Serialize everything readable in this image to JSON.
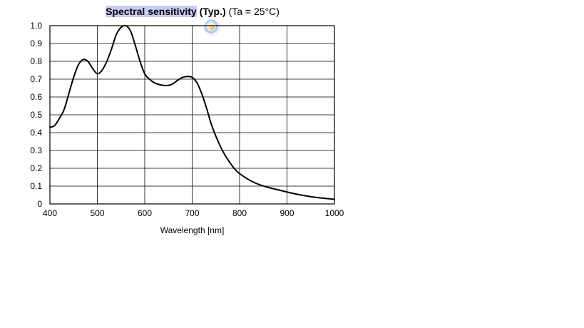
{
  "title": {
    "selected_text": "Spectral sensitivity",
    "bold_text": "(Typ.)",
    "condition_text": "(Ta = 25°C)"
  },
  "chart_data": {
    "type": "line",
    "title": "Spectral sensitivity (Typ.) (Ta = 25°C)",
    "xlabel": "Wavelength [nm]",
    "ylabel": "",
    "xlim": [
      400,
      1000
    ],
    "ylim": [
      0,
      1.0
    ],
    "x_ticks": [
      400,
      500,
      600,
      700,
      800,
      900,
      1000
    ],
    "y_ticks": [
      0,
      0.1,
      0.2,
      0.3,
      0.4,
      0.5,
      0.6,
      0.7,
      0.8,
      0.9,
      1.0
    ],
    "y_tick_labels": [
      "0",
      "0.1",
      "0.2",
      "0.3",
      "0.4",
      "0.5",
      "0.6",
      "0.7",
      "0.8",
      "0.9",
      "1.0"
    ],
    "grid": true,
    "series": [
      {
        "color": "#000000",
        "x": [
          400,
          410,
          420,
          430,
          440,
          450,
          460,
          470,
          480,
          490,
          500,
          510,
          520,
          530,
          540,
          550,
          560,
          570,
          580,
          590,
          600,
          610,
          620,
          630,
          640,
          650,
          660,
          670,
          680,
          690,
          700,
          710,
          720,
          730,
          740,
          750,
          760,
          770,
          780,
          790,
          800,
          820,
          840,
          860,
          880,
          900,
          920,
          940,
          960,
          980,
          1000
        ],
        "y": [
          0.43,
          0.44,
          0.48,
          0.53,
          0.62,
          0.71,
          0.78,
          0.81,
          0.8,
          0.76,
          0.73,
          0.75,
          0.8,
          0.87,
          0.95,
          0.99,
          1.0,
          0.97,
          0.89,
          0.8,
          0.73,
          0.7,
          0.68,
          0.67,
          0.665,
          0.665,
          0.675,
          0.695,
          0.71,
          0.715,
          0.71,
          0.68,
          0.62,
          0.54,
          0.45,
          0.38,
          0.32,
          0.27,
          0.23,
          0.195,
          0.17,
          0.135,
          0.11,
          0.093,
          0.08,
          0.067,
          0.055,
          0.045,
          0.037,
          0.031,
          0.026
        ]
      }
    ]
  }
}
